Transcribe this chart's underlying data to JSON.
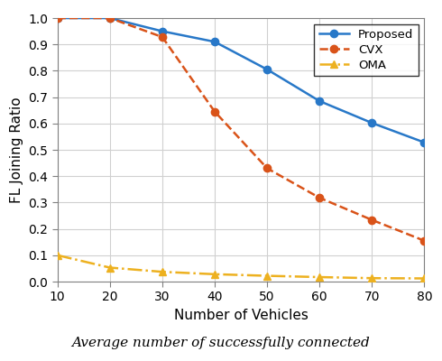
{
  "x": [
    10,
    20,
    30,
    40,
    50,
    60,
    70,
    80
  ],
  "proposed": [
    1.0,
    1.0,
    0.95,
    0.91,
    0.805,
    0.685,
    0.602,
    0.528
  ],
  "cvx": [
    1.0,
    1.0,
    0.928,
    0.645,
    0.43,
    0.318,
    0.234,
    0.155
  ],
  "oma": [
    0.1,
    0.053,
    0.037,
    0.028,
    0.022,
    0.017,
    0.013,
    0.012
  ],
  "proposed_color": "#2878C8",
  "cvx_color": "#D95319",
  "oma_color": "#EDB120",
  "xlabel": "Number of Vehicles",
  "ylabel": "FL Joining Ratio",
  "legend_proposed": "Proposed",
  "legend_cvx": "CVX",
  "legend_oma": "OMA",
  "xlim": [
    10,
    80
  ],
  "ylim": [
    0,
    1.0
  ],
  "xticks": [
    10,
    20,
    30,
    40,
    50,
    60,
    70,
    80
  ],
  "yticks": [
    0.0,
    0.1,
    0.2,
    0.3,
    0.4,
    0.5,
    0.6,
    0.7,
    0.8,
    0.9,
    1.0
  ],
  "grid_color": "#d0d0d0",
  "spine_color": "#808080",
  "background_color": "#ffffff",
  "caption": "Average number of successfully connected"
}
